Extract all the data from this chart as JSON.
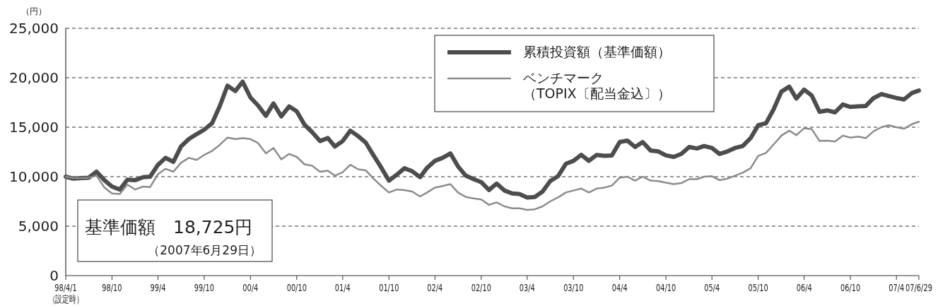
{
  "chart_data": {
    "type": "line",
    "ylabel": "（円）",
    "x": [
      "1998-04-01",
      "1998-05",
      "1998-06",
      "1998-07",
      "1998-08",
      "1998-09",
      "1998-10",
      "1998-11",
      "1998-12",
      "1999-01",
      "1999-02",
      "1999-03",
      "1999-04",
      "1999-05",
      "1999-06",
      "1999-07",
      "1999-08",
      "1999-09",
      "1999-10",
      "1999-11",
      "1999-12",
      "2000-01",
      "2000-02",
      "2000-03",
      "2000-04",
      "2000-05",
      "2000-06",
      "2000-07",
      "2000-08",
      "2000-09",
      "2000-10",
      "2000-11",
      "2000-12",
      "2001-01",
      "2001-02",
      "2001-03",
      "2001-04",
      "2001-05",
      "2001-06",
      "2001-07",
      "2001-08",
      "2001-09",
      "2001-10",
      "2001-11",
      "2001-12",
      "2002-01",
      "2002-02",
      "2002-03",
      "2002-04",
      "2002-05",
      "2002-06",
      "2002-07",
      "2002-08",
      "2002-09",
      "2002-10",
      "2002-11",
      "2002-12",
      "2003-01",
      "2003-02",
      "2003-03",
      "2003-04",
      "2003-05",
      "2003-06",
      "2003-07",
      "2003-08",
      "2003-09",
      "2003-10",
      "2003-11",
      "2003-12",
      "2004-01",
      "2004-02",
      "2004-03",
      "2004-04",
      "2004-05",
      "2004-06",
      "2004-07",
      "2004-08",
      "2004-09",
      "2004-10",
      "2004-11",
      "2004-12",
      "2005-01",
      "2005-02",
      "2005-03",
      "2005-04",
      "2005-05",
      "2005-06",
      "2005-07",
      "2005-08",
      "2005-09",
      "2005-10",
      "2005-11",
      "2005-12",
      "2006-01",
      "2006-02",
      "2006-03",
      "2006-04",
      "2006-05",
      "2006-06",
      "2006-07",
      "2006-08",
      "2006-09",
      "2006-10",
      "2006-11",
      "2006-12",
      "2007-01",
      "2007-02",
      "2007-03",
      "2007-04",
      "2007-05",
      "2007-06",
      "2007-06-29"
    ],
    "series": [
      {
        "name": "累積投資額（基準価額）",
        "color": "#4d4d4d",
        "values": [
          10000,
          9800,
          9850,
          9900,
          10500,
          9650,
          9000,
          8700,
          9700,
          9650,
          9950,
          10000,
          11200,
          11900,
          11500,
          13050,
          13800,
          14300,
          14750,
          15400,
          17100,
          19200,
          18650,
          19600,
          18000,
          17200,
          16150,
          17400,
          16100,
          17100,
          16600,
          15250,
          14500,
          13600,
          13900,
          13050,
          13600,
          14650,
          14100,
          13450,
          12150,
          10900,
          9600,
          10200,
          10850,
          10550,
          9950,
          10900,
          11600,
          11900,
          12350,
          11050,
          10100,
          9750,
          9450,
          8650,
          9300,
          8600,
          8300,
          8250,
          7900,
          7950,
          8500,
          9550,
          10050,
          11300,
          11600,
          12200,
          11600,
          12200,
          12100,
          12150,
          13500,
          13650,
          13000,
          13500,
          12650,
          12550,
          12150,
          12000,
          12300,
          13000,
          12850,
          13100,
          12900,
          12300,
          12550,
          12900,
          13100,
          13900,
          15200,
          15400,
          16800,
          18600,
          19100,
          17900,
          18800,
          18200,
          16550,
          16700,
          16500,
          17300,
          17050,
          17100,
          17150,
          17950,
          18350,
          18150,
          17950,
          17800,
          18450,
          18700
        ]
      },
      {
        "name": "ベンチマーク（TOPIX〔配当金込〕）",
        "color": "#8c8c8c",
        "values": [
          10000,
          9850,
          9850,
          9900,
          10100,
          8900,
          8300,
          8250,
          9200,
          8700,
          9000,
          8950,
          10250,
          10800,
          10500,
          11400,
          11900,
          11700,
          12200,
          12600,
          13200,
          13950,
          13800,
          13900,
          13800,
          13400,
          12350,
          12900,
          11750,
          12300,
          12000,
          11250,
          11100,
          10500,
          10600,
          10100,
          10450,
          11200,
          10750,
          10650,
          9800,
          9050,
          8400,
          8700,
          8650,
          8500,
          8000,
          8400,
          8900,
          9050,
          9250,
          8400,
          7950,
          7800,
          7700,
          7150,
          7400,
          7000,
          6800,
          6800,
          6650,
          6700,
          7000,
          7500,
          7900,
          8400,
          8600,
          8800,
          8400,
          8800,
          8900,
          9100,
          9900,
          10000,
          9600,
          10000,
          9600,
          9550,
          9400,
          9250,
          9350,
          9750,
          9750,
          10000,
          10050,
          9650,
          9800,
          10100,
          10400,
          10850,
          12100,
          12400,
          13250,
          14150,
          14650,
          14200,
          14900,
          14800,
          13600,
          13650,
          13550,
          14150,
          13950,
          14050,
          13900,
          14600,
          15000,
          15200,
          15000,
          14850,
          15300,
          15550
        ]
      }
    ],
    "xlim": [
      "1998-04-01",
      "2007-06-29"
    ],
    "xticks": [
      {
        "value": "1998-04-01",
        "label": "98/4/1\n（設定時）"
      },
      {
        "value": "1998-10",
        "label": "98/10"
      },
      {
        "value": "1999-04",
        "label": "99/4"
      },
      {
        "value": "1999-10",
        "label": "99/10"
      },
      {
        "value": "2000-04",
        "label": "00/4"
      },
      {
        "value": "2000-10",
        "label": "00/10"
      },
      {
        "value": "2001-04",
        "label": "01/4"
      },
      {
        "value": "2001-10",
        "label": "01/10"
      },
      {
        "value": "2002-04",
        "label": "02/4"
      },
      {
        "value": "2002-10",
        "label": "02/10"
      },
      {
        "value": "2003-04",
        "label": "03/4"
      },
      {
        "value": "2003-10",
        "label": "03/10"
      },
      {
        "value": "2004-04",
        "label": "04/4"
      },
      {
        "value": "2004-10",
        "label": "04/10"
      },
      {
        "value": "2005-04",
        "label": "05/4"
      },
      {
        "value": "2005-10",
        "label": "05/10"
      },
      {
        "value": "2006-04",
        "label": "06/4"
      },
      {
        "value": "2006-10",
        "label": "06/10"
      },
      {
        "value": "2007-04",
        "label": "07/4"
      },
      {
        "value": "2007-06-29",
        "label": "07/6/29"
      }
    ],
    "ylim": [
      0,
      25000
    ],
    "yticks": [
      {
        "value": 0,
        "label": "0"
      },
      {
        "value": 5000,
        "label": "5,000"
      },
      {
        "value": 10000,
        "label": "10,000"
      },
      {
        "value": 15000,
        "label": "15,000"
      },
      {
        "value": 20000,
        "label": "20,000"
      },
      {
        "value": 25000,
        "label": "25,000"
      }
    ],
    "grid": "y",
    "legend": "top",
    "line_style": "solid",
    "marker": "none",
    "annotations": [
      "基準価額　18,725円",
      "（2007年6月29日）"
    ]
  }
}
